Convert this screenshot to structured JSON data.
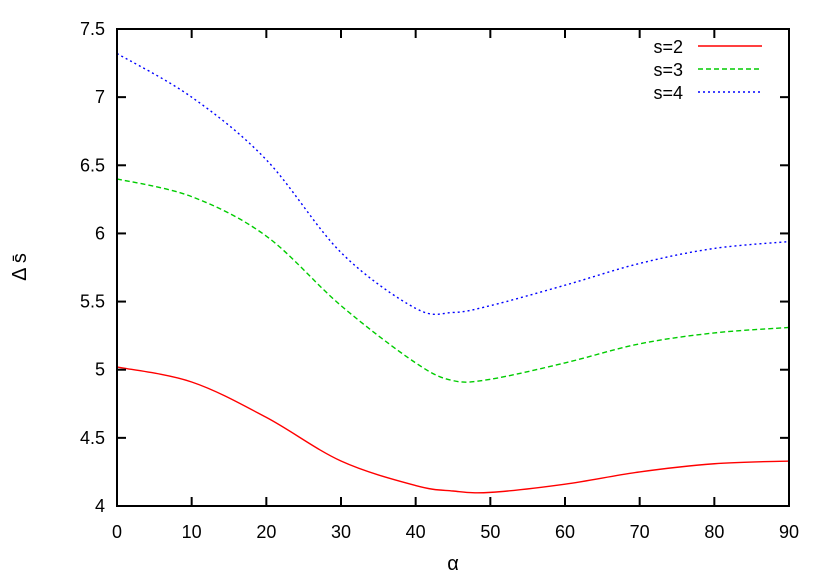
{
  "chart_data": {
    "type": "line",
    "title": "",
    "xlabel": "α",
    "ylabel": "Δ s̄",
    "xlim": [
      0,
      90
    ],
    "ylim": [
      4,
      7.5
    ],
    "xticks": [
      "0",
      "10",
      "20",
      "30",
      "40",
      "50",
      "60",
      "70",
      "80",
      "90"
    ],
    "yticks": [
      "4",
      "4.5",
      "5",
      "5.5",
      "6",
      "6.5",
      "7",
      "7.5"
    ],
    "grid": false,
    "legend_position": "top-right",
    "x": [
      0,
      10,
      20,
      30,
      40,
      45,
      50,
      60,
      70,
      80,
      90
    ],
    "series": [
      {
        "name": "s=2",
        "color": "#ff0000",
        "dash": "solid",
        "values": [
          5.02,
          4.91,
          4.65,
          4.33,
          4.15,
          4.11,
          4.1,
          4.16,
          4.25,
          4.31,
          4.33
        ]
      },
      {
        "name": "s=3",
        "color": "#00cc00",
        "dash": "dashed",
        "values": [
          6.4,
          6.27,
          5.98,
          5.47,
          5.05,
          4.92,
          4.93,
          5.05,
          5.19,
          5.27,
          5.31
        ]
      },
      {
        "name": "s=4",
        "color": "#0000ff",
        "dash": "dotted",
        "values": [
          7.32,
          7.0,
          6.54,
          5.86,
          5.45,
          5.42,
          5.47,
          5.62,
          5.78,
          5.89,
          5.94
        ]
      }
    ]
  }
}
